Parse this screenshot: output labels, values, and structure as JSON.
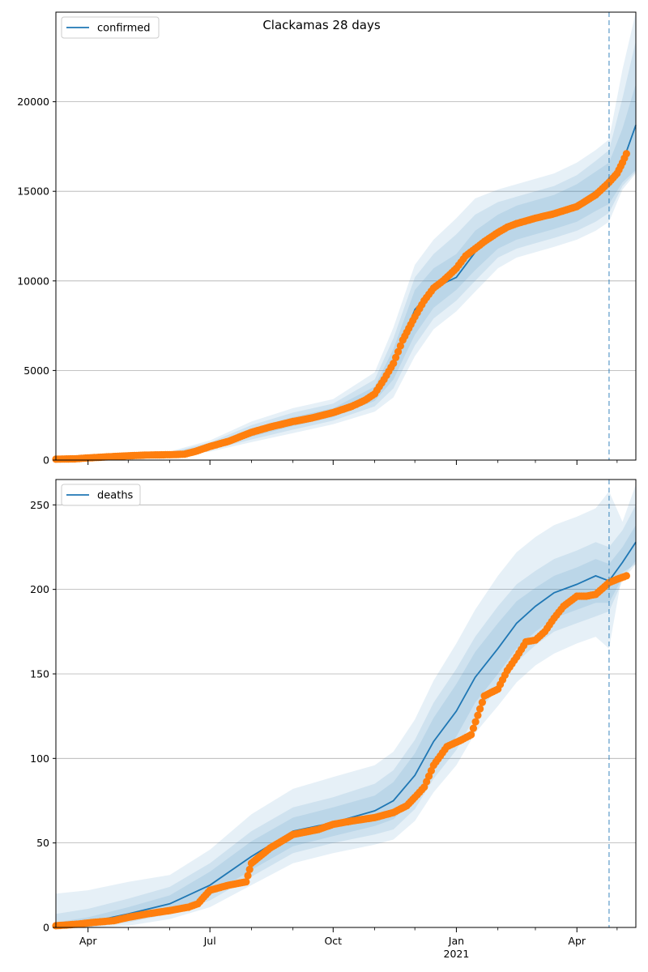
{
  "figure": {
    "title": "Clackamas 28 days"
  },
  "colors": {
    "line": "#1f77b4",
    "band": "#1f77b4",
    "points": "#ff7f0e",
    "grid": "#b0b0b0",
    "vline": "#1f77b4"
  },
  "chart_data": [
    {
      "type": "line",
      "name": "confirmed-panel",
      "legend": "confirmed",
      "legend_location": "upper left",
      "grid": "horizontal",
      "x_domain": [
        "2020-03-08",
        "2021-05-15"
      ],
      "ylim": [
        0,
        25000
      ],
      "y_ticks": [
        0,
        5000,
        10000,
        15000,
        20000
      ],
      "y_tick_labels": [
        "0",
        "5000",
        "10000",
        "15000",
        "20000"
      ],
      "x_major_ticks": [
        "2020-04-01",
        "2020-07-01",
        "2020-10-01",
        "2021-01-01",
        "2021-04-01"
      ],
      "x_minor_ticks": [
        "2020-05-01",
        "2020-06-01",
        "2020-08-01",
        "2020-09-01",
        "2020-11-01",
        "2020-12-01",
        "2021-02-01",
        "2021-03-01",
        "2021-05-01"
      ],
      "forecast_start": "2021-04-25",
      "model": {
        "dates": [
          "2020-03-08",
          "2020-04-01",
          "2020-05-01",
          "2020-06-01",
          "2020-07-01",
          "2020-08-01",
          "2020-09-01",
          "2020-10-01",
          "2020-11-01",
          "2020-11-15",
          "2020-12-01",
          "2020-12-15",
          "2021-01-01",
          "2021-01-15",
          "2021-02-01",
          "2021-02-15",
          "2021-03-01",
          "2021-03-15",
          "2021-04-01",
          "2021-04-15",
          "2021-04-25",
          "2021-05-05",
          "2021-05-15"
        ],
        "values": [
          0,
          80,
          250,
          330,
          760,
          1550,
          2150,
          2650,
          3700,
          5400,
          8400,
          9600,
          10200,
          11600,
          12800,
          13250,
          13600,
          13800,
          14300,
          15000,
          15400,
          16600,
          18700
        ],
        "bands": [
          {
            "lower": [
              0,
              60,
              210,
              280,
              650,
              1300,
              1900,
              2400,
              3300,
              4500,
              7000,
              8500,
              9500,
              10600,
              11800,
              12300,
              12600,
              12900,
              13300,
              13900,
              14300,
              15500,
              16200
            ],
            "upper": [
              0,
              100,
              290,
              380,
              870,
              1750,
              2400,
              2900,
              4100,
              6200,
              9500,
              10700,
              11500,
              12800,
              13700,
              14200,
              14500,
              14800,
              15400,
              16100,
              16600,
              18500,
              21000
            ]
          },
          {
            "lower": [
              0,
              45,
              180,
              240,
              560,
              1150,
              1700,
              2200,
              3000,
              4000,
              6400,
              7900,
              8900,
              10000,
              11300,
              11800,
              12100,
              12400,
              12800,
              13300,
              13800,
              15300,
              16100
            ],
            "upper": [
              0,
              120,
              330,
              430,
              980,
              1950,
              2650,
              3150,
              4500,
              6800,
              10200,
              11500,
              12600,
              13700,
              14400,
              14700,
              15000,
              15300,
              15900,
              16700,
              17300,
              20200,
              23400
            ]
          },
          {
            "lower": [
              0,
              30,
              150,
              200,
              470,
              1000,
              1500,
              2000,
              2700,
              3500,
              5800,
              7300,
              8300,
              9400,
              10700,
              11300,
              11600,
              11900,
              12300,
              12800,
              13300,
              15100,
              16000
            ],
            "upper": [
              0,
              140,
              370,
              480,
              1100,
              2150,
              2900,
              3400,
              4900,
              7400,
              10900,
              12300,
              13500,
              14600,
              15100,
              15400,
              15700,
              16000,
              16600,
              17300,
              17900,
              21800,
              25000
            ]
          }
        ]
      },
      "observed": {
        "dates": [
          "2020-03-08",
          "2020-03-22",
          "2020-04-01",
          "2020-04-15",
          "2020-05-01",
          "2020-05-15",
          "2020-06-01",
          "2020-06-12",
          "2020-06-20",
          "2020-07-01",
          "2020-07-15",
          "2020-08-01",
          "2020-08-15",
          "2020-09-01",
          "2020-09-15",
          "2020-10-01",
          "2020-10-15",
          "2020-10-25",
          "2020-11-01",
          "2020-11-08",
          "2020-11-15",
          "2020-11-22",
          "2020-12-01",
          "2020-12-08",
          "2020-12-15",
          "2020-12-22",
          "2021-01-01",
          "2021-01-08",
          "2021-01-15",
          "2021-01-22",
          "2021-02-01",
          "2021-02-08",
          "2021-02-15",
          "2021-03-01",
          "2021-03-15",
          "2021-04-01",
          "2021-04-15",
          "2021-04-25",
          "2021-05-01",
          "2021-05-05",
          "2021-05-08"
        ],
        "values": [
          50,
          70,
          120,
          180,
          240,
          280,
          300,
          330,
          480,
          760,
          1050,
          1550,
          1850,
          2150,
          2350,
          2650,
          3000,
          3350,
          3700,
          4500,
          5400,
          6700,
          8000,
          8900,
          9600,
          10000,
          10700,
          11400,
          11800,
          12200,
          12700,
          13000,
          13200,
          13500,
          13750,
          14150,
          14800,
          15500,
          16000,
          16600,
          17100
        ]
      }
    },
    {
      "type": "line",
      "name": "deaths-panel",
      "legend": "deaths",
      "legend_location": "upper left",
      "grid": "horizontal",
      "x_domain": [
        "2020-03-08",
        "2021-05-15"
      ],
      "ylim": [
        0,
        265
      ],
      "y_ticks": [
        0,
        50,
        100,
        150,
        200,
        250
      ],
      "y_tick_labels": [
        "0",
        "50",
        "100",
        "150",
        "200",
        "250"
      ],
      "x_major_ticks": [
        "2020-04-01",
        "2020-07-01",
        "2020-10-01",
        "2021-01-01",
        "2021-04-01"
      ],
      "x_major_labels": [
        "Apr",
        "Jul",
        "Oct",
        "Jan",
        "Apr"
      ],
      "x_year_label": "2021",
      "x_minor_ticks": [
        "2020-05-01",
        "2020-06-01",
        "2020-08-01",
        "2020-09-01",
        "2020-11-01",
        "2020-12-01",
        "2021-02-01",
        "2021-03-01",
        "2021-05-01"
      ],
      "forecast_start": "2021-04-25",
      "model": {
        "dates": [
          "2020-03-08",
          "2020-04-01",
          "2020-05-01",
          "2020-06-01",
          "2020-07-01",
          "2020-08-01",
          "2020-09-01",
          "2020-10-01",
          "2020-11-01",
          "2020-11-15",
          "2020-12-01",
          "2020-12-15",
          "2021-01-01",
          "2021-01-15",
          "2021-02-01",
          "2021-02-15",
          "2021-03-01",
          "2021-03-15",
          "2021-04-01",
          "2021-04-15",
          "2021-04-25",
          "2021-05-05",
          "2021-05-15"
        ],
        "values": [
          1,
          3,
          8,
          14,
          25,
          42,
          57,
          62,
          69,
          75,
          90,
          110,
          128,
          148,
          165,
          180,
          190,
          198,
          203,
          208,
          205,
          216,
          228
        ],
        "bands": [
          {
            "lower": [
              0,
              1,
              5,
              10,
              19,
              34,
              48,
              54,
              60,
              64,
              76,
              95,
              113,
              133,
              150,
              165,
              175,
              183,
              188,
              192,
              192,
              207,
              217
            ],
            "upper": [
              3,
              6,
              12,
              19,
              33,
              51,
              65,
              71,
              78,
              86,
              103,
              124,
              144,
              163,
              180,
              193,
              201,
              208,
              213,
              218,
              215,
              225,
              238
            ]
          },
          {
            "lower": [
              0,
              0,
              3,
              8,
              16,
              30,
              44,
              50,
              55,
              58,
              70,
              88,
              105,
              125,
              142,
              157,
              167,
              175,
              180,
              184,
              187,
              205,
              215
            ],
            "upper": [
              8,
              11,
              17,
              24,
              38,
              57,
              71,
              77,
              85,
              93,
              111,
              133,
              153,
              172,
              190,
              203,
              211,
              218,
              223,
              228,
              225,
              235,
              250
            ]
          },
          {
            "lower": [
              0,
              0,
              1,
              5,
              12,
              25,
              38,
              44,
              49,
              52,
              63,
              80,
              96,
              115,
              131,
              145,
              155,
              162,
              168,
              172,
              165,
              210,
              215
            ],
            "upper": [
              20,
              22,
              27,
              31,
              46,
              67,
              82,
              89,
              96,
              104,
              123,
              146,
              168,
              188,
              208,
              222,
              231,
              238,
              243,
              248,
              258,
              240,
              262
            ]
          }
        ]
      },
      "observed": {
        "dates": [
          "2020-03-08",
          "2020-03-25",
          "2020-04-05",
          "2020-04-20",
          "2020-05-01",
          "2020-05-15",
          "2020-06-01",
          "2020-06-15",
          "2020-06-22",
          "2020-07-01",
          "2020-07-15",
          "2020-07-28",
          "2020-08-01",
          "2020-08-15",
          "2020-09-01",
          "2020-09-20",
          "2020-10-01",
          "2020-10-15",
          "2020-11-01",
          "2020-11-15",
          "2020-11-25",
          "2020-12-01",
          "2020-12-08",
          "2020-12-15",
          "2020-12-25",
          "2021-01-05",
          "2021-01-12",
          "2021-01-22",
          "2021-02-01",
          "2021-02-08",
          "2021-02-15",
          "2021-02-22",
          "2021-03-01",
          "2021-03-08",
          "2021-03-15",
          "2021-03-22",
          "2021-04-01",
          "2021-04-08",
          "2021-04-15",
          "2021-04-25",
          "2021-05-01",
          "2021-05-08"
        ],
        "values": [
          1,
          2,
          3,
          4,
          6,
          8,
          10,
          12,
          14,
          22,
          25,
          27,
          38,
          47,
          55,
          58,
          61,
          63,
          65,
          68,
          72,
          77,
          83,
          96,
          107,
          111,
          114,
          137,
          141,
          152,
          160,
          169,
          170,
          175,
          183,
          190,
          196,
          196,
          197,
          204,
          206,
          208
        ]
      }
    }
  ]
}
